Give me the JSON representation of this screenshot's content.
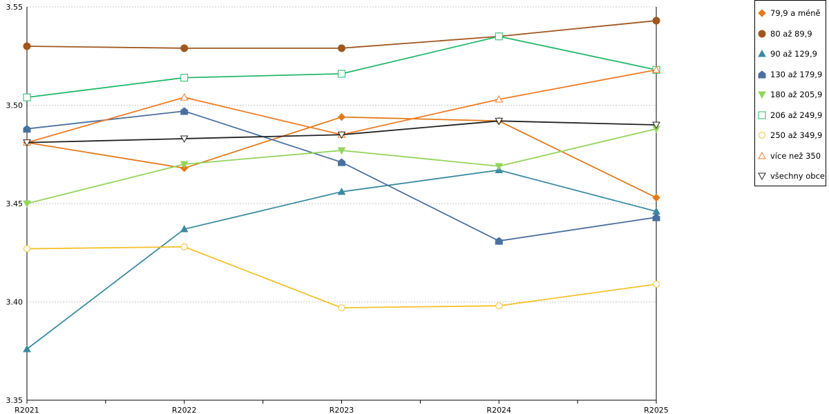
{
  "chart_data": {
    "type": "line",
    "categories": [
      "R2021",
      "R2022",
      "R2023",
      "R2024",
      "R2025"
    ],
    "ylim": [
      3.35,
      3.55
    ],
    "yticks": [
      "3.35",
      "3.40",
      "3.45",
      "3.50",
      "3.55"
    ],
    "grid": "horizontal dotted",
    "legend_position": "right",
    "series": [
      {
        "name": "79,9 a méně",
        "color": "#e07b1a",
        "marker": "diamond",
        "values": [
          3.481,
          3.468,
          3.494,
          3.492,
          3.453
        ]
      },
      {
        "name": "80 až 89,9",
        "color": "#a0571e",
        "marker": "circle-filled",
        "values": [
          3.53,
          3.529,
          3.529,
          3.535,
          3.543
        ]
      },
      {
        "name": "90 až 129,9",
        "color": "#3a8aa0",
        "marker": "triangle-up-filled",
        "values": [
          3.376,
          3.437,
          3.456,
          3.467,
          3.446
        ]
      },
      {
        "name": "130 až 179,9",
        "color": "#4a70a0",
        "marker": "house-filled",
        "values": [
          3.488,
          3.497,
          3.471,
          3.431,
          3.443
        ]
      },
      {
        "name": "180 až 205,9",
        "color": "#93d45a",
        "marker": "triangle-down-filled",
        "values": [
          3.45,
          3.47,
          3.477,
          3.469,
          3.488
        ]
      },
      {
        "name": "206 až 249,9",
        "color": "#22b86a",
        "marker": "square-open",
        "values": [
          3.504,
          3.514,
          3.516,
          3.535,
          3.518
        ]
      },
      {
        "name": "250 až 349,9",
        "color": "#f5c12c",
        "marker": "circle-open",
        "values": [
          3.427,
          3.428,
          3.397,
          3.398,
          3.409
        ]
      },
      {
        "name": "více než 350",
        "color": "#f07a24",
        "marker": "triangle-up-open",
        "values": [
          3.481,
          3.504,
          3.485,
          3.503,
          3.518
        ]
      },
      {
        "name": "všechny obce",
        "color": "#222222",
        "marker": "triangle-down-open",
        "values": [
          3.481,
          3.483,
          3.485,
          3.492,
          3.49
        ]
      }
    ]
  }
}
